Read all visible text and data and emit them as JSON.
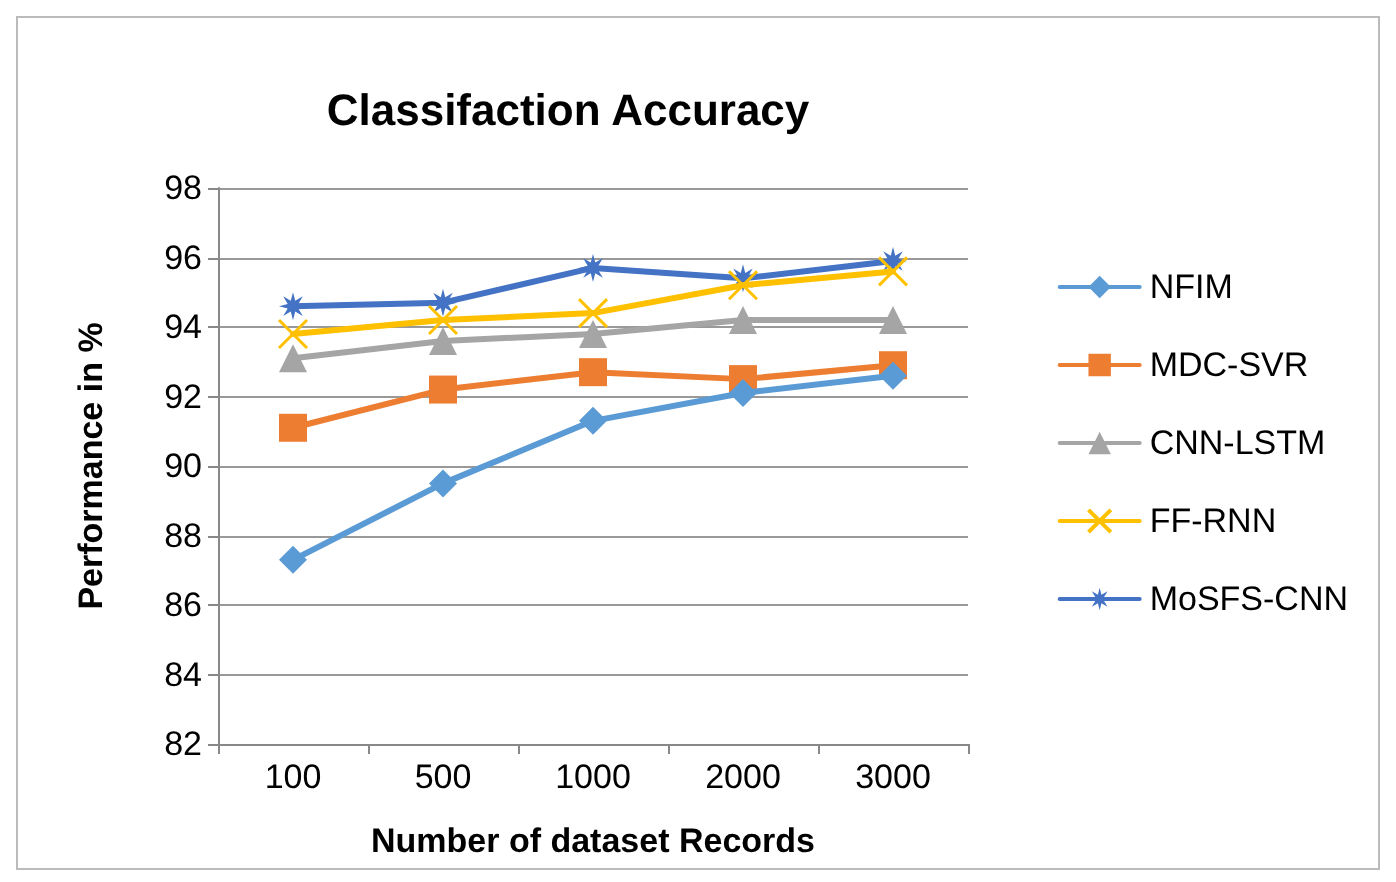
{
  "chart_data": {
    "type": "line",
    "title": "Classifaction Accuracy",
    "xlabel": "Number of dataset Records",
    "ylabel": "Performance in %",
    "categories": [
      "100",
      "500",
      "1000",
      "2000",
      "3000"
    ],
    "series": [
      {
        "name": "NFIM",
        "color": "#5b9bd5",
        "marker": "diamond",
        "values": [
          87.3,
          89.5,
          91.3,
          92.1,
          92.6
        ]
      },
      {
        "name": "MDC-SVR",
        "color": "#ed7d31",
        "marker": "square",
        "values": [
          91.1,
          92.2,
          92.7,
          92.5,
          92.9
        ]
      },
      {
        "name": "CNN-LSTM",
        "color": "#a5a5a5",
        "marker": "triangle",
        "values": [
          93.1,
          93.6,
          93.8,
          94.2,
          94.2
        ]
      },
      {
        "name": "FF-RNN",
        "color": "#ffc000",
        "marker": "cross",
        "values": [
          93.8,
          94.2,
          94.4,
          95.2,
          95.6
        ]
      },
      {
        "name": "MoSFS-CNN",
        "color": "#4472c4",
        "marker": "star",
        "values": [
          94.6,
          94.7,
          95.7,
          95.4,
          95.9
        ]
      }
    ],
    "ylim": [
      82,
      98
    ],
    "yticks": [
      82,
      84,
      86,
      88,
      90,
      92,
      94,
      96,
      98
    ],
    "grid": "y",
    "legend": "right"
  }
}
